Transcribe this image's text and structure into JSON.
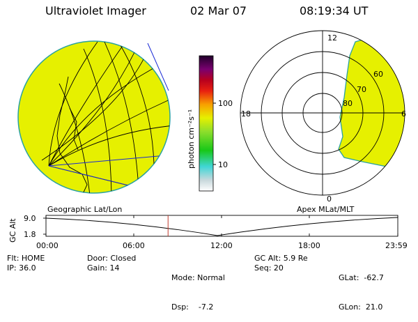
{
  "header": {
    "instrument": "Ultraviolet Imager",
    "date": "02 Mar 07",
    "time": "08:19:34 UT"
  },
  "colors": {
    "aurora_fill": "#e6f000",
    "aurora_edge": "#2aa2a0",
    "grid_line": "#000000",
    "blue_line": "#1a2ad6",
    "timeline_marker": "#c0392b"
  },
  "colorbar": {
    "unit_label": "photon cm⁻²s⁻¹",
    "tick_100": "100",
    "tick_10": "10"
  },
  "polar_plot": {
    "mlt_labels": {
      "top": "12",
      "left": "18",
      "right": "6",
      "bottom": "0"
    },
    "lat_labels": [
      "60",
      "70",
      "80"
    ]
  },
  "maps": {
    "left_caption": "Geographic Lat/Lon",
    "right_caption": "Apex MLat/MLT"
  },
  "timeline": {
    "axis_label": "GC Alt",
    "y_top": "9.0",
    "y_bottom": "1.8",
    "ticks": [
      "00:00",
      "06:00",
      "12:00",
      "18:00",
      "23:59"
    ],
    "marker_time_fraction": 0.347
  },
  "status": {
    "flt": "Flt: HOME",
    "ip": "IP: 36.0",
    "door": "Door: Closed",
    "gain": "Gain: 14",
    "mode": "Mode: Normal",
    "dsp": "Dsp:    -7.2",
    "gc_alt": "GC Alt: 5.9 Re",
    "seq": "Seq: 20",
    "glat": "GLat:  -62.7",
    "glon": "GLon:  21.0"
  }
}
